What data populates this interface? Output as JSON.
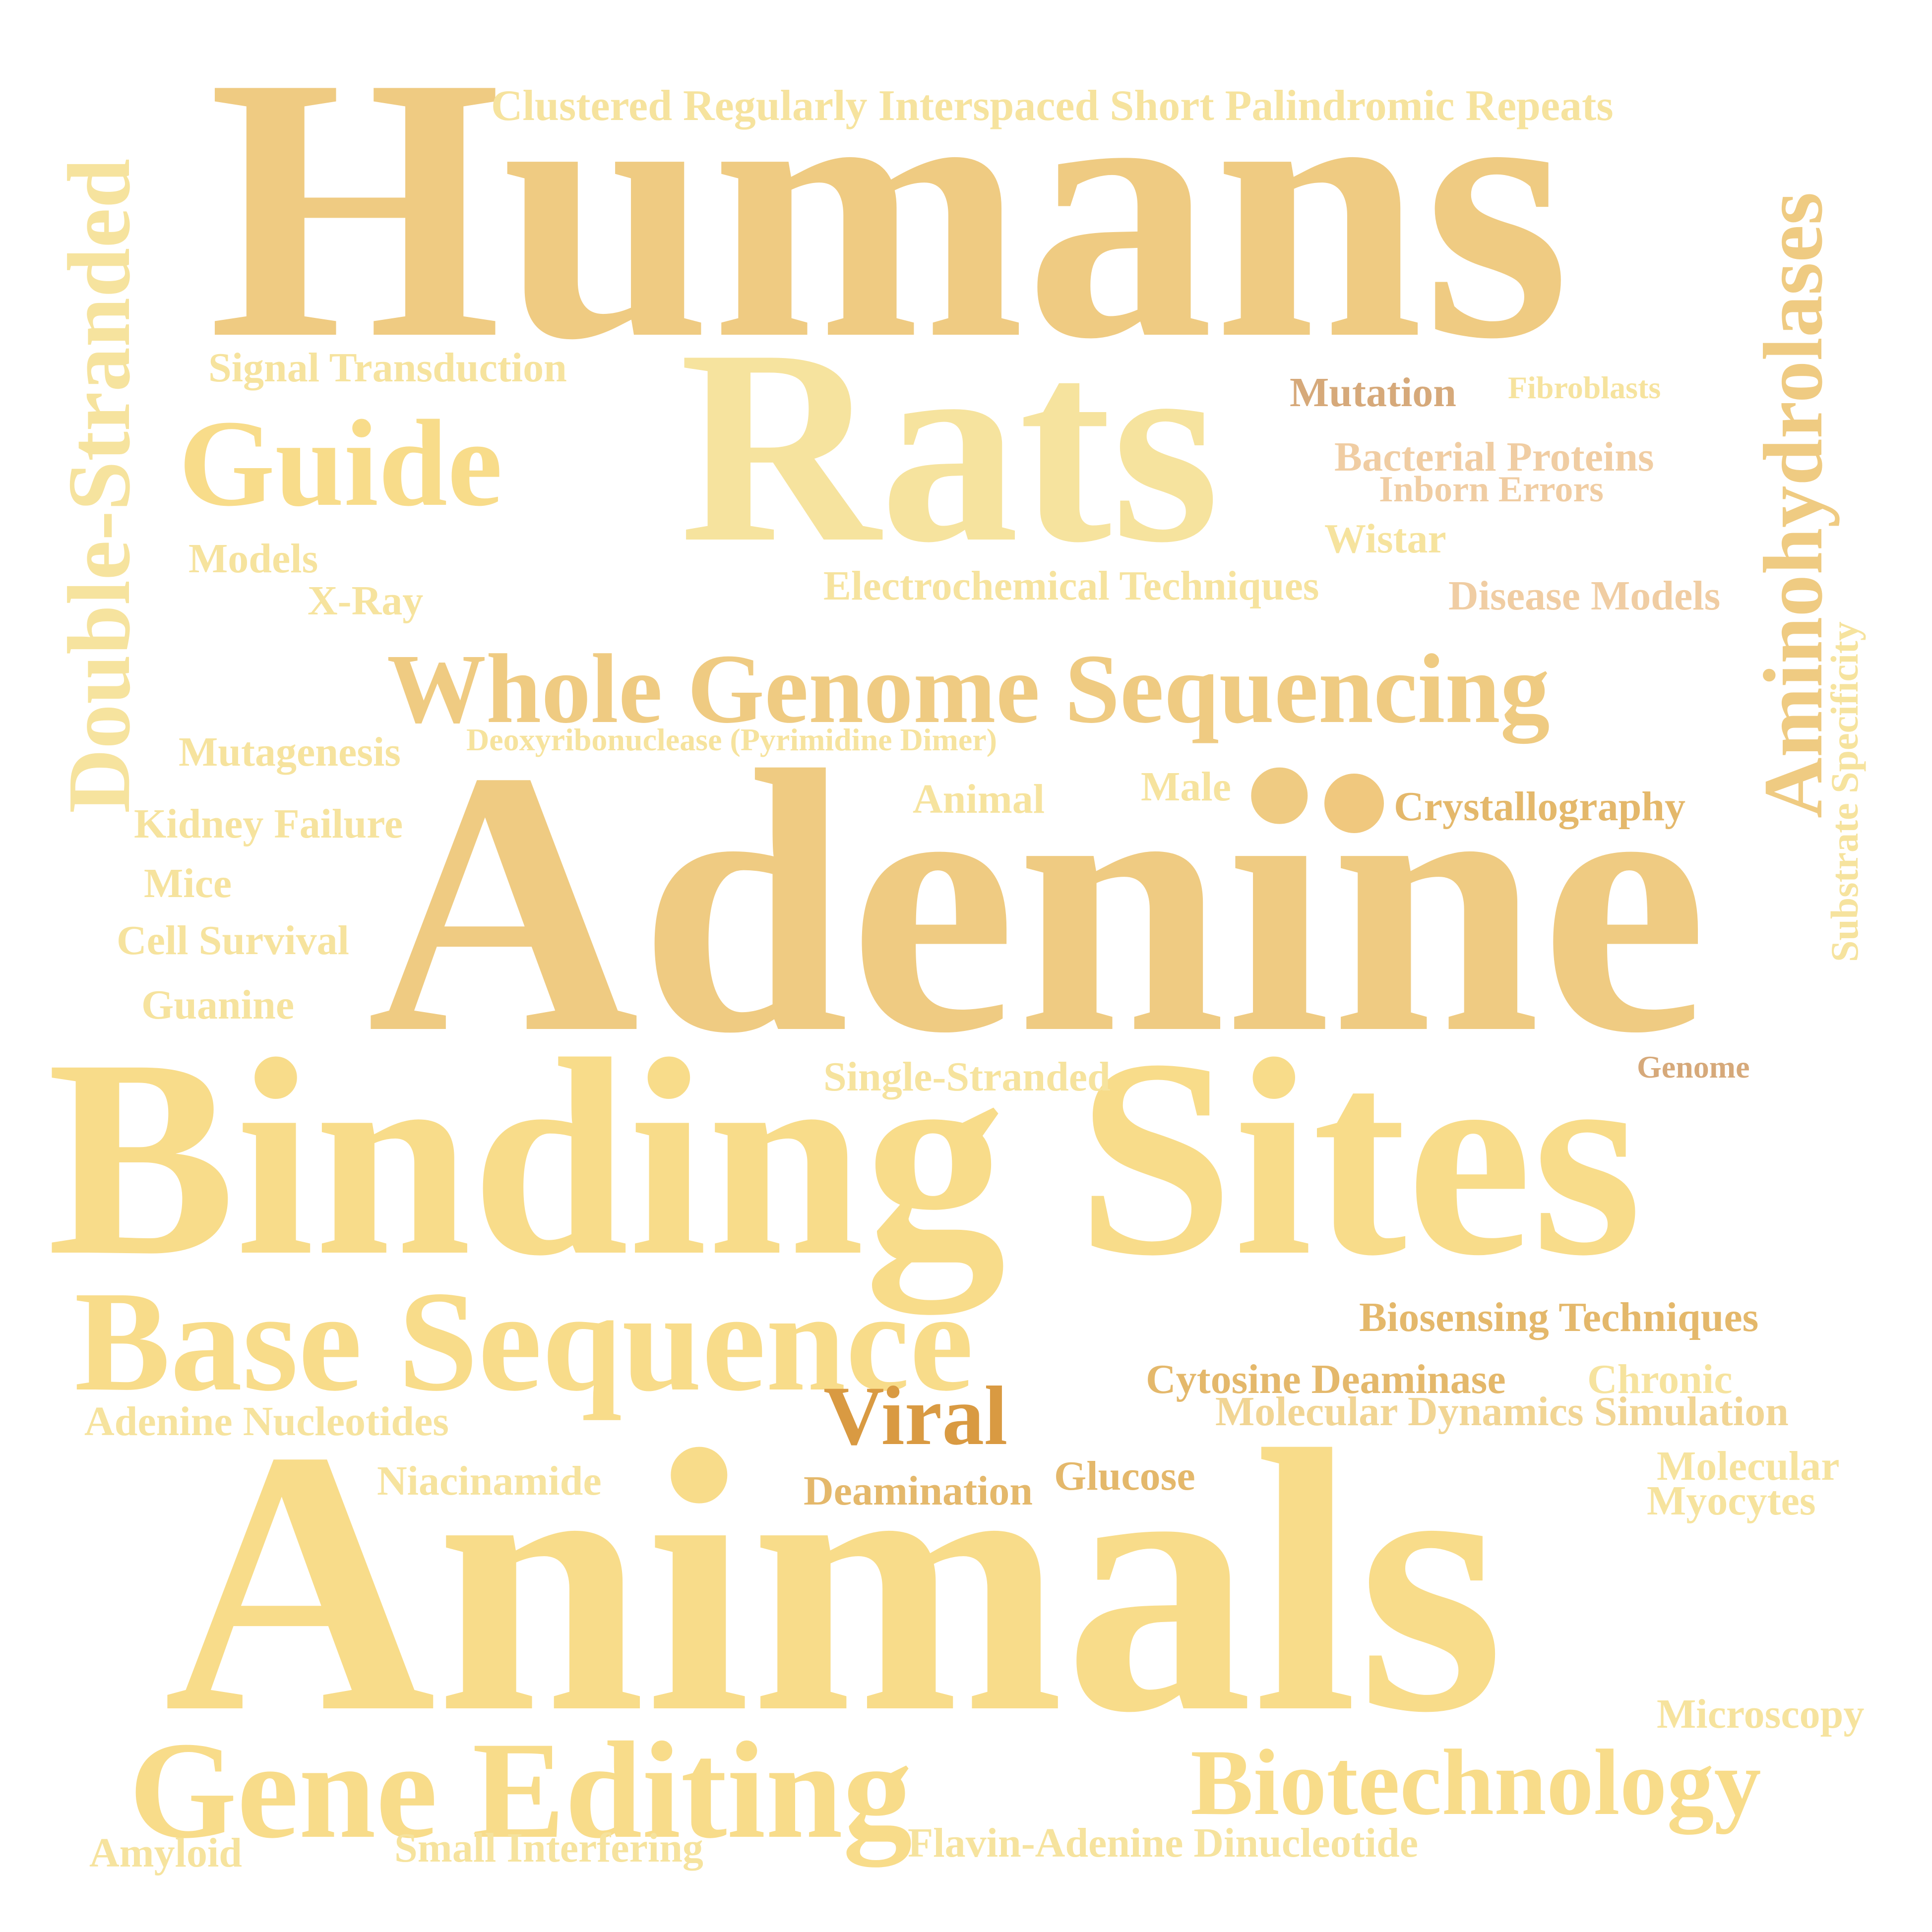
{
  "colors": {
    "background": "#ffffff",
    "gold": "#efcb82",
    "pale_gold": "#f6e39e",
    "sand": "#f1d594",
    "yellow": "#f8dc8a",
    "amber": "#e4b86b",
    "dark_amber": "#d99a42",
    "tan": "#d6a97a",
    "peach": "#f0cda3",
    "dot": "#f0c87e"
  },
  "words": {
    "humans": "Humans",
    "rats": "Rats",
    "adenine": "Adenine",
    "binding_sites": "Binding Sites",
    "animals": "Animals",
    "base_sequence": "Base Sequence",
    "gene_editing": "Gene Editing",
    "whole_genome_sequencing": "Whole Genome Sequencing",
    "guide": "Guide",
    "double_stranded": "Double-Stranded",
    "aminohydrolases": "Aminohydrolases",
    "biotechnology": "Biotechnology",
    "viral": "Viral",
    "crispr": "Clustered Regularly Interspaced Short Palindromic Repeats",
    "signal_transduction": "Signal Transduction",
    "mutation": "Mutation",
    "fibroblasts": "Fibroblasts",
    "bacterial_proteins": "Bacterial Proteins",
    "inborn_errors": "Inborn Errors",
    "wistar": "Wistar",
    "electrochemical_techniques": "Electrochemical Techniques",
    "disease_models": "Disease Models",
    "models": "Models",
    "x_ray": "X-Ray",
    "substrate_specificity": "Substrate Specificity",
    "mutagenesis": "Mutagenesis",
    "deoxyribonuclease": "Deoxyribonuclease (Pyrimidine Dimer)",
    "animal": "Animal",
    "male": "Male",
    "crystallography": "Crystallography",
    "kidney_failure": "Kidney Failure",
    "mice": "Mice",
    "cell_survival": "Cell Survival",
    "guanine": "Guanine",
    "single_stranded": "Single-Stranded",
    "genome": "Genome",
    "biosensing_techniques": "Biosensing Techniques",
    "cytosine_deaminase": "Cytosine Deaminase",
    "chronic": "Chronic",
    "molecular_dynamics": "Molecular Dynamics Simulation",
    "adenine_nucleotides": "Adenine Nucleotides",
    "niacinamide": "Niacinamide",
    "deamination": "Deamination",
    "glucose": "Glucose",
    "molecular": "Molecular",
    "myocytes": "Myocytes",
    "microscopy": "Microscopy",
    "amyloid": "Amyloid",
    "small_interfering": "Small Interfering",
    "fad": "Flavin-Adenine Dinucleotide"
  }
}
